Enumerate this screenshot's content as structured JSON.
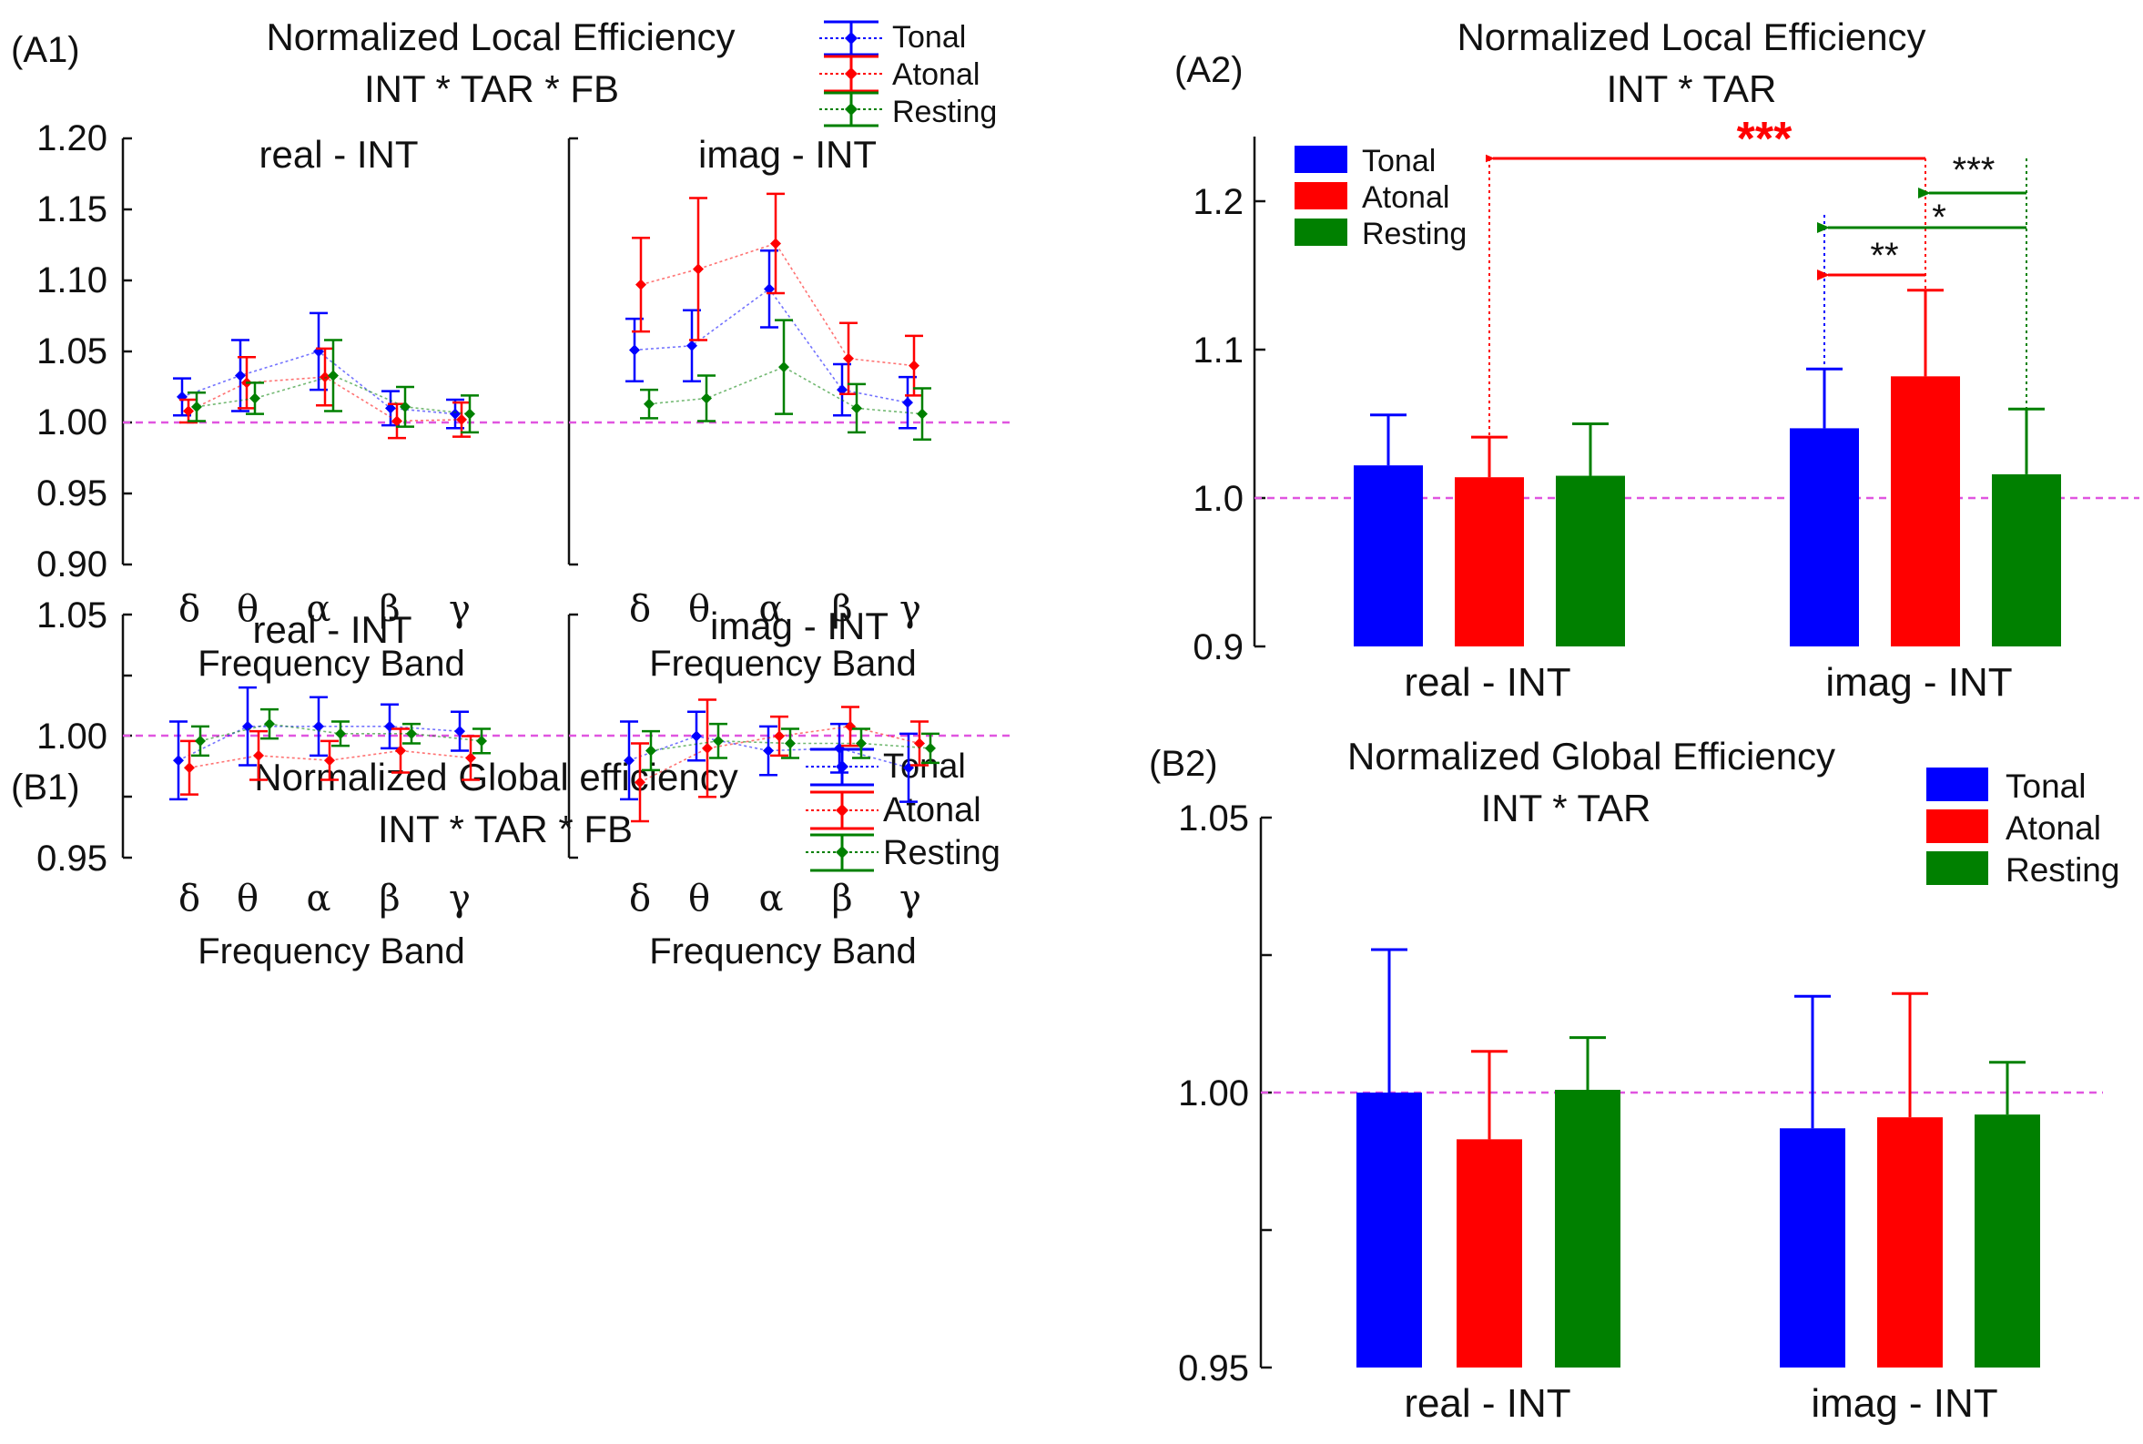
{
  "panels": {
    "A1": {
      "label": "(A1)",
      "title_lines": [
        "Normalized Local Efficiency",
        "INT * TAR * FB"
      ],
      "legend": [
        "Tonal",
        "Atonal",
        "Resting"
      ],
      "ytick_labels": [
        "1.20",
        "1.15",
        "1.10",
        "1.05",
        "1.00",
        "0.95",
        "0.90"
      ],
      "subplot_titles": [
        "real - INT",
        "imag - INT"
      ],
      "band_labels": [
        "δ",
        "θ",
        "α",
        "β",
        "γ"
      ],
      "xlabel": "Frequency Band"
    },
    "B1": {
      "label": "(B1)",
      "title_lines": [
        "Normalized Global efficiency",
        "INT * TAR * FB"
      ],
      "legend": [
        "Tonal",
        "Atonal",
        "Resting"
      ],
      "ytick_labels": [
        "1.05",
        "1.00",
        "0.95"
      ],
      "subplot_titles": [
        "real - INT",
        "imag - INT"
      ],
      "band_labels": [
        "δ",
        "θ",
        "α",
        "β",
        "γ"
      ],
      "xlabel": "Frequency Band"
    },
    "A2": {
      "label": "(A2)",
      "title_lines": [
        "Normalized Local Efficiency",
        "INT * TAR"
      ],
      "legend": [
        "Tonal",
        "Atonal",
        "Resting"
      ],
      "ytick_labels": [
        "1.2",
        "1.1",
        "1.0",
        "0.9"
      ],
      "group_labels": [
        "real - INT",
        "imag - INT"
      ],
      "significance": [
        {
          "comparison": "Atonal imag vs Atonal real",
          "stars": "***"
        },
        {
          "comparison": "Resting imag vs Atonal imag",
          "stars": "***"
        },
        {
          "comparison": "Resting imag vs Tonal imag",
          "stars": "*"
        },
        {
          "comparison": "Atonal imag vs Tonal imag",
          "stars": "**"
        }
      ]
    },
    "B2": {
      "label": "(B2)",
      "title_lines": [
        "Normalized Global Efficiency",
        "INT * TAR"
      ],
      "legend": [
        "Tonal",
        "Atonal",
        "Resting"
      ],
      "ytick_labels": [
        "1.05",
        "1.00",
        "0.95"
      ],
      "group_labels": [
        "real - INT",
        "imag - INT"
      ]
    }
  },
  "colors": {
    "tonal": "#0000ff",
    "atonal": "#ff0000",
    "resting": "#008000",
    "reference": "#e055e0"
  },
  "chart_data": [
    {
      "id": "A1",
      "type": "line",
      "title": "Normalized Local Efficiency INT * TAR * FB",
      "xlabel": "Frequency Band",
      "ylabel": "",
      "categories": [
        "δ",
        "θ",
        "α",
        "β",
        "γ"
      ],
      "ylim": [
        0.9,
        1.2
      ],
      "reference_line": 1.0,
      "subplots": [
        {
          "name": "real - INT",
          "series": [
            {
              "name": "Tonal",
              "values": [
                1.018,
                1.033,
                1.05,
                1.01,
                1.006
              ],
              "errors": [
                0.013,
                0.025,
                0.027,
                0.012,
                0.01
              ]
            },
            {
              "name": "Atonal",
              "values": [
                1.008,
                1.028,
                1.032,
                1.001,
                1.002
              ],
              "errors": [
                0.008,
                0.018,
                0.02,
                0.012,
                0.012
              ]
            },
            {
              "name": "Resting",
              "values": [
                1.011,
                1.017,
                1.033,
                1.011,
                1.006
              ],
              "errors": [
                0.01,
                0.011,
                0.025,
                0.014,
                0.013
              ]
            }
          ]
        },
        {
          "name": "imag - INT",
          "series": [
            {
              "name": "Tonal",
              "values": [
                1.051,
                1.054,
                1.094,
                1.023,
                1.014
              ],
              "errors": [
                0.022,
                0.025,
                0.027,
                0.018,
                0.018
              ]
            },
            {
              "name": "Atonal",
              "values": [
                1.097,
                1.108,
                1.126,
                1.045,
                1.04
              ],
              "errors": [
                0.033,
                0.05,
                0.035,
                0.025,
                0.021
              ]
            },
            {
              "name": "Resting",
              "values": [
                1.013,
                1.017,
                1.039,
                1.01,
                1.006
              ],
              "errors": [
                0.01,
                0.016,
                0.033,
                0.017,
                0.018
              ]
            }
          ]
        }
      ]
    },
    {
      "id": "B1",
      "type": "line",
      "title": "Normalized Global efficiency INT * TAR * FB",
      "xlabel": "Frequency Band",
      "ylabel": "",
      "categories": [
        "δ",
        "θ",
        "α",
        "β",
        "γ"
      ],
      "ylim": [
        0.95,
        1.05
      ],
      "reference_line": 1.0,
      "subplots": [
        {
          "name": "real - INT",
          "series": [
            {
              "name": "Tonal",
              "values": [
                0.99,
                1.004,
                1.004,
                1.004,
                1.002
              ],
              "errors": [
                0.016,
                0.016,
                0.012,
                0.009,
                0.008
              ]
            },
            {
              "name": "Atonal",
              "values": [
                0.987,
                0.992,
                0.99,
                0.994,
                0.991
              ],
              "errors": [
                0.011,
                0.01,
                0.008,
                0.009,
                0.009
              ]
            },
            {
              "name": "Resting",
              "values": [
                0.998,
                1.005,
                1.001,
                1.001,
                0.998
              ],
              "errors": [
                0.006,
                0.006,
                0.005,
                0.004,
                0.005
              ]
            }
          ]
        },
        {
          "name": "imag - INT",
          "series": [
            {
              "name": "Tonal",
              "values": [
                0.99,
                1.0,
                0.994,
                0.995,
                0.987
              ],
              "errors": [
                0.016,
                0.01,
                0.01,
                0.01,
                0.014
              ]
            },
            {
              "name": "Atonal",
              "values": [
                0.981,
                0.995,
                1.0,
                1.004,
                0.997
              ],
              "errors": [
                0.016,
                0.02,
                0.008,
                0.008,
                0.009
              ]
            },
            {
              "name": "Resting",
              "values": [
                0.994,
                0.998,
                0.997,
                0.997,
                0.995
              ],
              "errors": [
                0.008,
                0.007,
                0.006,
                0.006,
                0.006
              ]
            }
          ]
        }
      ]
    },
    {
      "id": "A2",
      "type": "bar",
      "title": "Normalized Local Efficiency INT * TAR",
      "xlabel": "",
      "ylabel": "",
      "categories": [
        "real - INT",
        "imag - INT"
      ],
      "ylim": [
        0.9,
        1.25
      ],
      "reference_line": 1.0,
      "series": [
        {
          "name": "Tonal",
          "values": [
            1.022,
            1.047
          ],
          "errors": [
            0.034,
            0.04
          ]
        },
        {
          "name": "Atonal",
          "values": [
            1.014,
            1.082
          ],
          "errors": [
            0.027,
            0.058
          ]
        },
        {
          "name": "Resting",
          "values": [
            1.015,
            1.016
          ],
          "errors": [
            0.035,
            0.044
          ]
        }
      ]
    },
    {
      "id": "B2",
      "type": "bar",
      "title": "Normalized Global Efficiency INT * TAR",
      "xlabel": "",
      "ylabel": "",
      "categories": [
        "real - INT",
        "imag - INT"
      ],
      "ylim": [
        0.95,
        1.05
      ],
      "reference_line": 1.0,
      "series": [
        {
          "name": "Tonal",
          "values": [
            1.0,
            0.9935
          ],
          "errors": [
            0.026,
            0.024
          ]
        },
        {
          "name": "Atonal",
          "values": [
            0.9915,
            0.9955
          ],
          "errors": [
            0.016,
            0.0225
          ]
        },
        {
          "name": "Resting",
          "values": [
            1.0005,
            0.996
          ],
          "errors": [
            0.0095,
            0.0095
          ]
        }
      ]
    }
  ]
}
